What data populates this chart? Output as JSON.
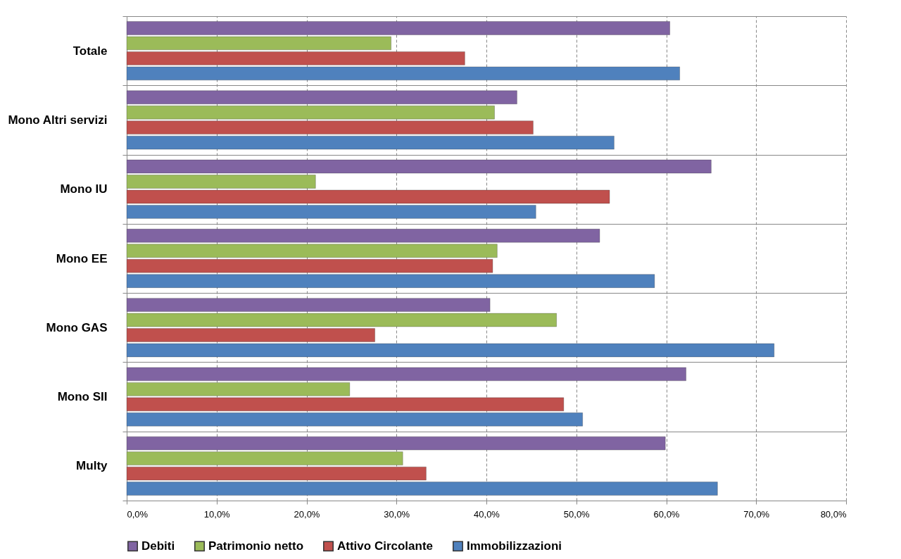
{
  "chart_data": {
    "type": "bar",
    "orientation": "horizontal",
    "categories": [
      "Totale",
      "Mono Altri servizi",
      "Mono IU",
      "Mono EE",
      "Mono GAS",
      "Mono SII",
      "Multy"
    ],
    "series": [
      {
        "name": "Debiti",
        "color": "#8064a2",
        "values": [
          60.4,
          43.4,
          65.0,
          52.6,
          40.4,
          62.2,
          59.9
        ]
      },
      {
        "name": "Patrimonio netto",
        "color": "#9bbb59",
        "values": [
          29.4,
          40.9,
          21.0,
          41.2,
          47.8,
          24.8,
          30.7
        ]
      },
      {
        "name": "Attivo Circolante",
        "color": "#c0504d",
        "values": [
          37.6,
          45.2,
          53.7,
          40.7,
          27.6,
          48.6,
          33.3
        ]
      },
      {
        "name": "Immobilizzazioni",
        "color": "#4f81bd",
        "values": [
          61.5,
          54.2,
          45.5,
          58.7,
          72.0,
          50.7,
          65.7
        ]
      }
    ],
    "xlim": [
      0,
      80
    ],
    "xticks": [
      {
        "value": 0,
        "label": "0,0%"
      },
      {
        "value": 10,
        "label": "10,0%"
      },
      {
        "value": 20,
        "label": "20,0%"
      },
      {
        "value": 30,
        "label": "30,0%"
      },
      {
        "value": 40,
        "label": "40,0%"
      },
      {
        "value": 50,
        "label": "50,0%"
      },
      {
        "value": 60,
        "label": "60,0%"
      },
      {
        "value": 70,
        "label": "70,0%"
      },
      {
        "value": 80,
        "label": "80,0%"
      }
    ],
    "grid": "x",
    "legend": "bottom"
  }
}
